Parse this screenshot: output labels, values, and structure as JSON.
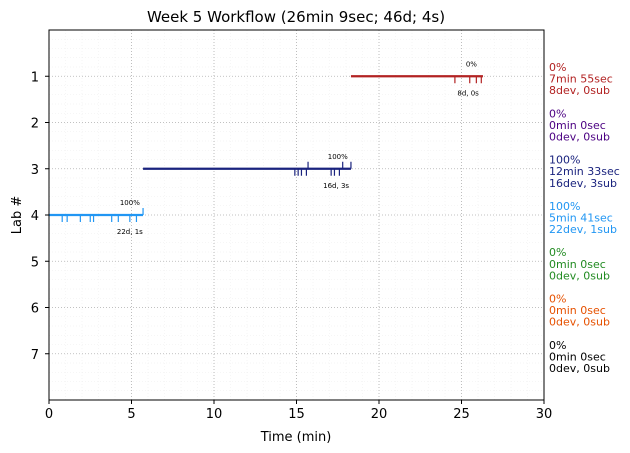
{
  "chart_data": {
    "type": "line",
    "title": "Week 5 Workflow (26min 9sec; 46d; 4s)",
    "xlabel": "Time (min)",
    "ylabel": "Lab #",
    "xlim": [
      0,
      30
    ],
    "ylim": [
      8,
      0
    ],
    "xticks": [
      0,
      5,
      10,
      15,
      20,
      25,
      30
    ],
    "yticks": [
      1,
      2,
      3,
      4,
      5,
      6,
      7
    ],
    "grid": true,
    "labs": [
      {
        "lab": 1,
        "color": "#b22222",
        "segment": [
          18.3,
          26.3
        ],
        "ticks_down": [
          24.6,
          25.5,
          25.9,
          26.2
        ],
        "ticks_up": [],
        "pct_label": "0%",
        "pct_x": 25.6,
        "count_label": "8d, 0s",
        "count_x": 25.4,
        "side_lines": [
          "0%",
          "7min 55sec",
          "8dev, 0sub"
        ]
      },
      {
        "lab": 2,
        "color": "#4b0082",
        "segment": null,
        "ticks_down": [],
        "ticks_up": [],
        "side_lines": [
          "0%",
          "0min 0sec",
          "0dev, 0sub"
        ]
      },
      {
        "lab": 3,
        "color": "#1a237e",
        "segment": [
          5.7,
          18.3
        ],
        "ticks_down": [
          14.9,
          15.1,
          15.3,
          15.6,
          17.1,
          17.3,
          17.6
        ],
        "ticks_up": [
          15.7,
          17.8,
          18.3
        ],
        "pct_label": "100%",
        "pct_x": 17.5,
        "count_label": "16d, 3s",
        "count_x": 17.4,
        "side_lines": [
          "100%",
          "12min 33sec",
          "16dev, 3sub"
        ]
      },
      {
        "lab": 4,
        "color": "#2196f3",
        "segment": [
          0,
          5.7
        ],
        "ticks_down": [
          0.8,
          1.1,
          1.9,
          2.5,
          2.7,
          3.8,
          4.2,
          4.9,
          5.3
        ],
        "ticks_up": [
          5.7
        ],
        "pct_label": "100%",
        "pct_x": 4.9,
        "count_label": "22d, 1s",
        "count_x": 4.9,
        "side_lines": [
          "100%",
          "5min 41sec",
          "22dev, 1sub"
        ]
      },
      {
        "lab": 5,
        "color": "#228b22",
        "segment": null,
        "ticks_down": [],
        "ticks_up": [],
        "side_lines": [
          "0%",
          "0min 0sec",
          "0dev, 0sub"
        ]
      },
      {
        "lab": 6,
        "color": "#e65100",
        "segment": null,
        "ticks_down": [],
        "ticks_up": [],
        "side_lines": [
          "0%",
          "0min 0sec",
          "0dev, 0sub"
        ]
      },
      {
        "lab": 7,
        "color": "#000000",
        "segment": null,
        "ticks_down": [],
        "ticks_up": [],
        "side_lines": [
          "0%",
          "0min 0sec",
          "0dev, 0sub"
        ]
      }
    ]
  }
}
